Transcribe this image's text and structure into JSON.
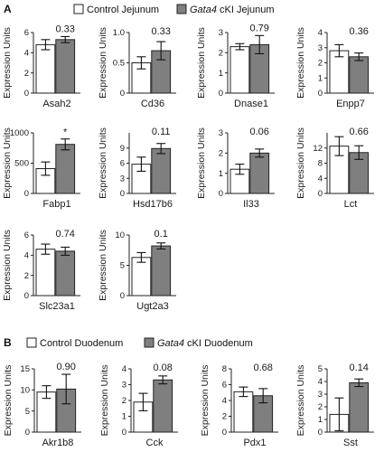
{
  "colors": {
    "control": "#ffffff",
    "ko": "#7f7f7f",
    "stroke": "#222222"
  },
  "panel_a": {
    "letter": "A",
    "legend": {
      "control": "Control Jejunum",
      "ko_gene": "Gata4",
      "ko_rest": " cKI Jejunum"
    }
  },
  "panel_b": {
    "letter": "B",
    "legend": {
      "control": "Control Duodenum",
      "ko_gene": "Gata4",
      "ko_rest": " cKI Duodenum"
    }
  },
  "chart_data": [
    {
      "type": "bar",
      "panel": "A",
      "gene": "Asah2",
      "ylabel": "Expression Units",
      "ylim": [
        0,
        6
      ],
      "yticks": [
        0,
        2,
        4,
        6
      ],
      "categories": [
        "Control",
        "cKI"
      ],
      "values": [
        4.8,
        5.3
      ],
      "errors": [
        0.5,
        0.3
      ],
      "annotation": "0.33"
    },
    {
      "type": "bar",
      "panel": "A",
      "gene": "Cd36",
      "ylabel": "Expression Units",
      "ylim": [
        0,
        1.0
      ],
      "yticks": [
        0,
        0.5,
        1.0
      ],
      "categories": [
        "Control",
        "cKI"
      ],
      "values": [
        0.5,
        0.7
      ],
      "errors": [
        0.1,
        0.15
      ],
      "annotation": "0.33"
    },
    {
      "type": "bar",
      "panel": "A",
      "gene": "Dnase1",
      "ylabel": "Expression Units",
      "ylim": [
        0,
        3
      ],
      "yticks": [
        0,
        1,
        2,
        3
      ],
      "categories": [
        "Control",
        "cKI"
      ],
      "values": [
        2.3,
        2.4
      ],
      "errors": [
        0.15,
        0.45
      ],
      "annotation": "0.79"
    },
    {
      "type": "bar",
      "panel": "A",
      "gene": "Enpp7",
      "ylabel": "Expression Units",
      "ylim": [
        0,
        4
      ],
      "yticks": [
        0,
        1,
        2,
        3,
        4
      ],
      "categories": [
        "Control",
        "cKI"
      ],
      "values": [
        2.8,
        2.4
      ],
      "errors": [
        0.4,
        0.25
      ],
      "annotation": "0.36"
    },
    {
      "type": "bar",
      "panel": "A",
      "gene": "Fabp1",
      "ylabel": "Expression Units",
      "ylim": [
        0,
        1000
      ],
      "yticks": [
        0,
        500,
        1000
      ],
      "categories": [
        "Control",
        "cKI"
      ],
      "values": [
        410,
        810
      ],
      "errors": [
        110,
        90
      ],
      "annotation": "*"
    },
    {
      "type": "bar",
      "panel": "A",
      "gene": "Hsd17b6",
      "ylabel": "Expression Units",
      "ylim": [
        0,
        12
      ],
      "yticks": [
        0,
        3,
        6,
        9
      ],
      "categories": [
        "Control",
        "cKI"
      ],
      "values": [
        5.8,
        8.9
      ],
      "errors": [
        1.4,
        1.0
      ],
      "annotation": "0.11"
    },
    {
      "type": "bar",
      "panel": "A",
      "gene": "Il33",
      "ylabel": "Expression Units",
      "ylim": [
        0,
        3
      ],
      "yticks": [
        0,
        1,
        2,
        3
      ],
      "categories": [
        "Control",
        "cKI"
      ],
      "values": [
        1.2,
        2.0
      ],
      "errors": [
        0.25,
        0.2
      ],
      "annotation": "0.06"
    },
    {
      "type": "bar",
      "panel": "A",
      "gene": "Lct",
      "ylabel": "Expression Units",
      "ylim": [
        0,
        16
      ],
      "yticks": [
        0,
        4,
        8,
        12
      ],
      "categories": [
        "Control",
        "cKI"
      ],
      "values": [
        12.5,
        10.8
      ],
      "errors": [
        2.5,
        1.8
      ],
      "annotation": "0.66"
    },
    {
      "type": "bar",
      "panel": "A",
      "gene": "Slc23a1",
      "ylabel": "Expression Units",
      "ylim": [
        0,
        6
      ],
      "yticks": [
        0,
        2,
        4,
        6
      ],
      "categories": [
        "Control",
        "cKI"
      ],
      "values": [
        4.6,
        4.4
      ],
      "errors": [
        0.5,
        0.4
      ],
      "annotation": "0.74"
    },
    {
      "type": "bar",
      "panel": "A",
      "gene": "Ugt2a3",
      "ylabel": "Expression Units",
      "ylim": [
        0,
        10
      ],
      "yticks": [
        0,
        5,
        10
      ],
      "categories": [
        "Control",
        "cKI"
      ],
      "values": [
        6.3,
        8.2
      ],
      "errors": [
        0.8,
        0.5
      ],
      "annotation": "0.1"
    },
    {
      "type": "bar",
      "panel": "B",
      "gene": "Akr1b8",
      "ylabel": "Expression Units",
      "ylim": [
        0,
        15
      ],
      "yticks": [
        0,
        5,
        10,
        15
      ],
      "categories": [
        "Control",
        "cKI"
      ],
      "values": [
        9.5,
        10.2
      ],
      "errors": [
        1.5,
        3.5
      ],
      "annotation": "0.90"
    },
    {
      "type": "bar",
      "panel": "B",
      "gene": "Cck",
      "ylabel": "Expression Units",
      "ylim": [
        0,
        4
      ],
      "yticks": [
        0,
        1,
        2,
        3,
        4
      ],
      "categories": [
        "Control",
        "cKI"
      ],
      "values": [
        1.9,
        3.3
      ],
      "errors": [
        0.55,
        0.25
      ],
      "annotation": "0.08"
    },
    {
      "type": "bar",
      "panel": "B",
      "gene": "Pdx1",
      "ylabel": "Expression Units",
      "ylim": [
        0,
        8
      ],
      "yticks": [
        0,
        2,
        4,
        6,
        8
      ],
      "categories": [
        "Control",
        "cKI"
      ],
      "values": [
        5.1,
        4.6
      ],
      "errors": [
        0.6,
        0.9
      ],
      "annotation": "0.68"
    },
    {
      "type": "bar",
      "panel": "B",
      "gene": "Sst",
      "ylabel": "Expression Units",
      "ylim": [
        0,
        5
      ],
      "yticks": [
        0,
        1,
        2,
        3,
        4,
        5
      ],
      "categories": [
        "Control",
        "cKI"
      ],
      "values": [
        1.4,
        3.9
      ],
      "errors": [
        1.3,
        0.3
      ],
      "annotation": "0.14"
    }
  ]
}
